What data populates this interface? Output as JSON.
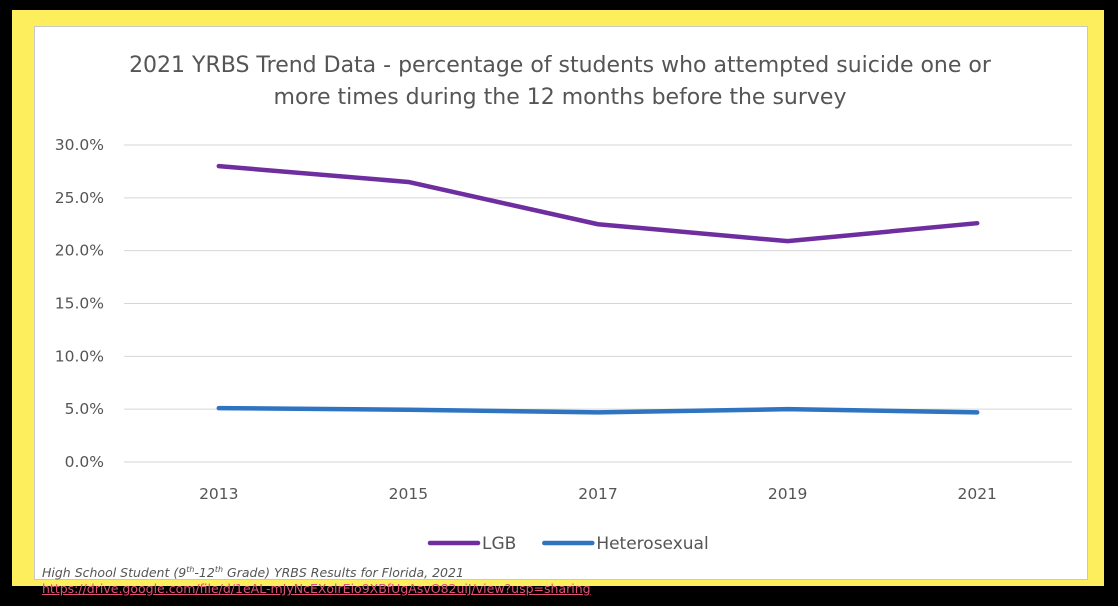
{
  "chart_data": {
    "type": "line",
    "title_line1": "2021 YRBS Trend Data - percentage of students who attempted suicide one or",
    "title_line2": "more times during the 12 months before the survey",
    "categories": [
      "2013",
      "2015",
      "2017",
      "2019",
      "2021"
    ],
    "y_ticks": [
      "0.0%",
      "5.0%",
      "10.0%",
      "15.0%",
      "20.0%",
      "25.0%",
      "30.0%"
    ],
    "ylim": [
      0,
      30
    ],
    "grid": true,
    "legend_position": "bottom",
    "series": [
      {
        "name": "LGB",
        "color": "#6e2e9f",
        "values": [
          28.0,
          26.5,
          22.5,
          20.9,
          22.6
        ]
      },
      {
        "name": "Heterosexual",
        "color": "#2f74c0",
        "values": [
          5.1,
          4.95,
          4.7,
          5.0,
          4.7
        ]
      }
    ]
  },
  "caption": {
    "text_a": "High School Student (9",
    "sup_a": "th",
    "text_b": "-12",
    "sup_b": "th",
    "text_c": " Grade) YRBS Results for Florida, 2021"
  },
  "link_text": "https://drive.google.com/file/d/1eAL-mJyNcEXolrEio9XBfUgAsvO82uiJ/view?usp=sharing",
  "colors": {
    "frame": "#000000",
    "border": "#fcee5c",
    "panel": "#ffffff"
  }
}
